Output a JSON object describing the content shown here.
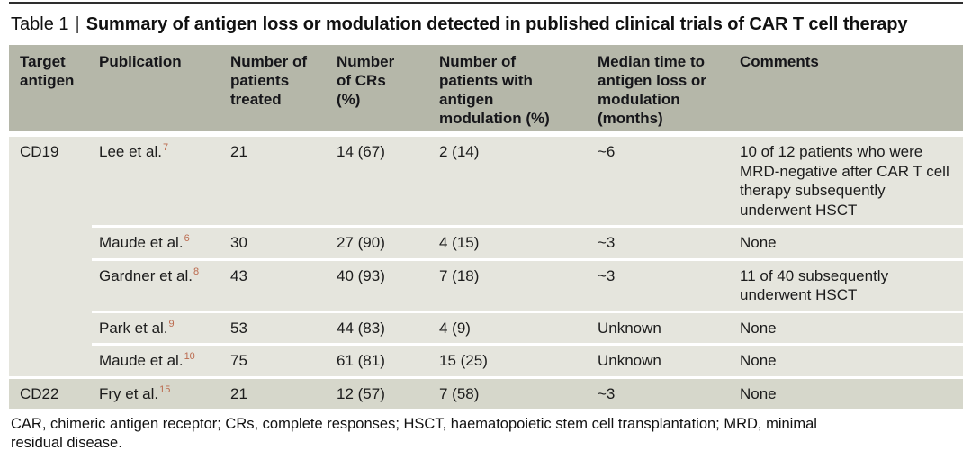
{
  "title": {
    "label": "Table 1",
    "divider": "|",
    "text": "Summary of antigen loss or modulation detected in published clinical trials of CAR T cell therapy"
  },
  "colors": {
    "header_bg": "#b5b7a9",
    "row_light_bg": "#e5e5dd",
    "row_dark_bg": "#d6d7cb",
    "reference_accent": "#bb6a4e",
    "top_rule": "#2e2e2e"
  },
  "table": {
    "columns": [
      {
        "label": "Target antigen"
      },
      {
        "label": "Publication"
      },
      {
        "label": "Number of patients treated"
      },
      {
        "label": "Number of CRs (%)"
      },
      {
        "label": "Number of patients with antigen modulation (%)"
      },
      {
        "label": "Median time to antigen loss or modulation (months)"
      },
      {
        "label": "Comments"
      }
    ],
    "groups": [
      {
        "target_antigen": "CD19",
        "rows": [
          {
            "publication": "Lee et al.",
            "ref": "7",
            "patients_treated": "21",
            "crs_pct": "14 (67)",
            "modulation_pct": "2 (14)",
            "median_time": "~6",
            "comments": "10 of 12 patients who were MRD-negative after CAR T cell therapy subsequently underwent HSCT"
          },
          {
            "publication": "Maude et al.",
            "ref": "6",
            "patients_treated": "30",
            "crs_pct": "27 (90)",
            "modulation_pct": "4 (15)",
            "median_time": "~3",
            "comments": "None"
          },
          {
            "publication": "Gardner et al.",
            "ref": "8",
            "patients_treated": "43",
            "crs_pct": "40 (93)",
            "modulation_pct": "7 (18)",
            "median_time": "~3",
            "comments": "11 of 40 subsequently underwent HSCT"
          },
          {
            "publication": "Park et al.",
            "ref": "9",
            "patients_treated": "53",
            "crs_pct": "44 (83)",
            "modulation_pct": "4 (9)",
            "median_time": "Unknown",
            "comments": "None"
          },
          {
            "publication": "Maude et al.",
            "ref": "10",
            "patients_treated": "75",
            "crs_pct": "61 (81)",
            "modulation_pct": "15 (25)",
            "median_time": "Unknown",
            "comments": "None"
          }
        ]
      },
      {
        "target_antigen": "CD22",
        "rows": [
          {
            "publication": "Fry et al.",
            "ref": "15",
            "patients_treated": "21",
            "crs_pct": "12 (57)",
            "modulation_pct": "7 (58)",
            "median_time": "~3",
            "comments": "None"
          }
        ]
      }
    ]
  },
  "footnote": {
    "lines": [
      "CAR, chimeric antigen receptor; CRs, complete responses; HSCT, haematopoietic stem cell transplantation; MRD, minimal",
      "residual disease."
    ]
  }
}
